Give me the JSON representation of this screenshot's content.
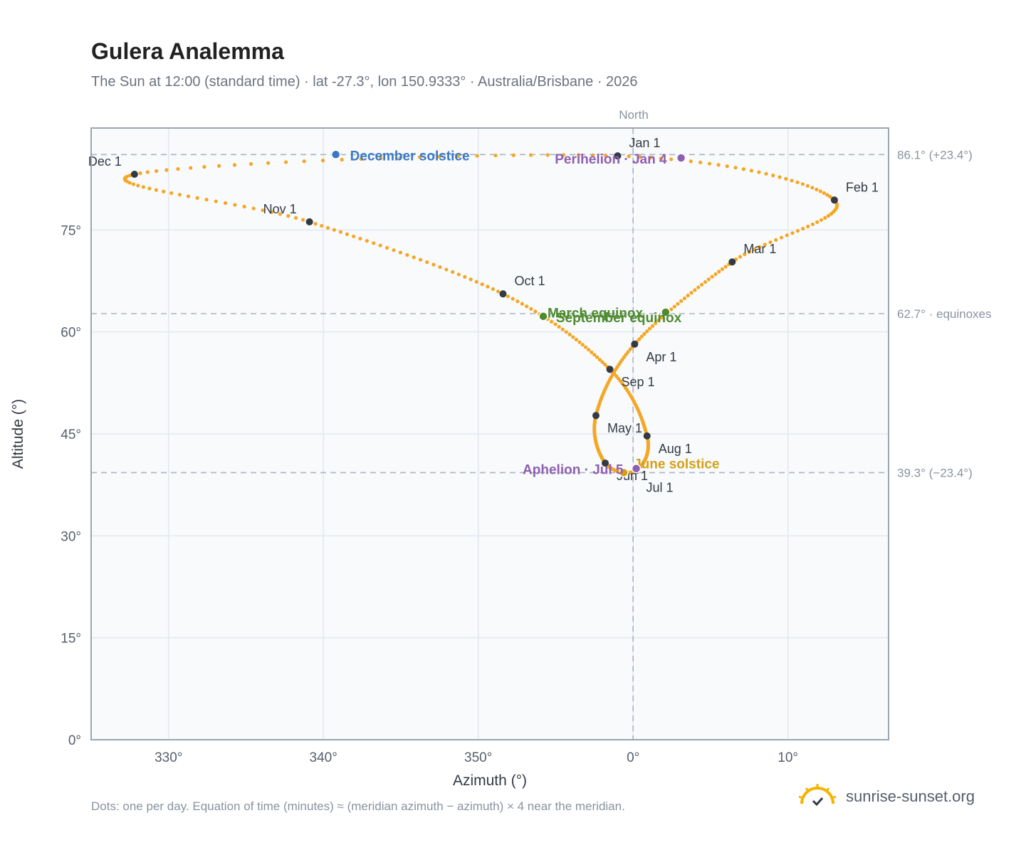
{
  "title": "Gulera Analemma",
  "subtitle": "The Sun at 12:00 (standard time) · lat -27.3°, lon 150.9333° · Australia/Brisbane · 2026",
  "footnote": "Dots: one per day. Equation of time (minutes) ≈ (meridian azimuth − azimuth) × 4 near the meridian.",
  "brand": {
    "name": "sunrise-sunset.org",
    "icon": "sun-logo-icon"
  },
  "colors": {
    "curve": "#f5a623",
    "month_marker": "#333a44",
    "december_solstice": "#3a78c3",
    "june_solstice": "#d4a017",
    "equinox": "#4e8a2e",
    "apsis": "#8e5fb0",
    "plot_bg": "#f8fafc",
    "grid": "#e2e8f0",
    "reference_line": "#aab4c3"
  },
  "chart_data": {
    "type": "scatter",
    "title": "Gulera Analemma",
    "xlabel": "Azimuth (°)",
    "ylabel": "Altitude (°)",
    "xlim": [
      -35,
      16.5
    ],
    "ylim": [
      0,
      90
    ],
    "x_ticks": [
      -30,
      -20,
      -10,
      0,
      10
    ],
    "x_tick_labels": [
      "330°",
      "340°",
      "350°",
      "0°",
      "10°"
    ],
    "y_ticks": [
      0,
      15,
      30,
      45,
      60,
      75
    ],
    "y_tick_labels": [
      "0°",
      "15°",
      "30°",
      "45°",
      "60°",
      "75°"
    ],
    "top_label": "North",
    "reference_lines": [
      {
        "axis": "y",
        "value": 86.1,
        "label": "86.1° (+23.4°)"
      },
      {
        "axis": "y",
        "value": 62.7,
        "label": "62.7° · equinoxes"
      },
      {
        "axis": "y",
        "value": 39.3,
        "label": "39.3° (−23.4°)"
      },
      {
        "axis": "x",
        "value": 0,
        "label": "North"
      }
    ],
    "month_markers": [
      {
        "label": "Jan 1",
        "x": -1.0,
        "y": 85.9
      },
      {
        "label": "Feb 1",
        "x": 13.0,
        "y": 79.4
      },
      {
        "label": "Mar 1",
        "x": 6.4,
        "y": 70.3
      },
      {
        "label": "Apr 1",
        "x": 0.1,
        "y": 58.2
      },
      {
        "label": "May 1",
        "x": -2.4,
        "y": 47.7
      },
      {
        "label": "Jun 1",
        "x": -1.8,
        "y": 40.7
      },
      {
        "label": "Jul 1",
        "x": 0.2,
        "y": 39.6
      },
      {
        "label": "Aug 1",
        "x": 0.9,
        "y": 44.7
      },
      {
        "label": "Sep 1",
        "x": -1.5,
        "y": 54.5
      },
      {
        "label": "Oct 1",
        "x": -8.4,
        "y": 65.6
      },
      {
        "label": "Nov 1",
        "x": -20.9,
        "y": 76.2
      },
      {
        "label": "Dec 1",
        "x": -32.2,
        "y": 83.2
      }
    ],
    "events": [
      {
        "label": "December solstice",
        "x": -19.2,
        "y": 86.1,
        "kind": "december_solstice"
      },
      {
        "label": "Perihelion · Jan 4",
        "x": 3.1,
        "y": 85.6,
        "kind": "apsis"
      },
      {
        "label": "March equinox",
        "x": -5.8,
        "y": 62.3,
        "kind": "equinox"
      },
      {
        "label": "September equinox",
        "x": 2.1,
        "y": 62.9,
        "kind": "equinox"
      },
      {
        "label": "June solstice",
        "x": -0.6,
        "y": 39.3,
        "kind": "june_solstice"
      },
      {
        "label": "Aphelion · Jul 5",
        "x": 0.2,
        "y": 39.9,
        "kind": "apsis"
      }
    ]
  }
}
